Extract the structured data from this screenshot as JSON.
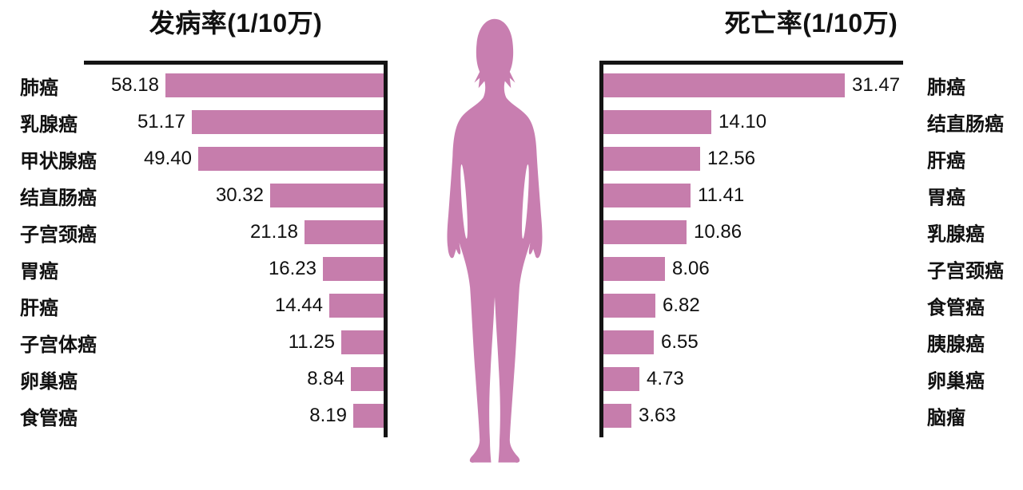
{
  "colors": {
    "bar": "#c67dac",
    "figure": "#c87eb0",
    "axis": "#141414",
    "text": "#111111",
    "background": "#ffffff"
  },
  "figure": {
    "description": "female-body-silhouette"
  },
  "chart_data": [
    {
      "type": "bar",
      "orientation": "horizontal",
      "title": "发病率(1/10万)",
      "unit": "1/10万",
      "categories": [
        "肺癌",
        "乳腺癌",
        "甲状腺癌",
        "结直肠癌",
        "子宫颈癌",
        "胃癌",
        "肝癌",
        "子宫体癌",
        "卵巢癌",
        "食管癌"
      ],
      "values": [
        58.18,
        51.17,
        49.4,
        30.32,
        21.18,
        16.23,
        14.44,
        11.25,
        8.84,
        8.19
      ],
      "xlim": [
        0,
        62
      ],
      "bars_grow": "right-to-left",
      "axis_style": "top-border-and-right-axis",
      "category_label_position": "left-of-chart",
      "value_label_position": "left-of-bar",
      "grid": false,
      "legend": false
    },
    {
      "type": "bar",
      "orientation": "horizontal",
      "title": "死亡率(1/10万)",
      "unit": "1/10万",
      "categories": [
        "肺癌",
        "结直肠癌",
        "肝癌",
        "胃癌",
        "乳腺癌",
        "子宫颈癌",
        "食管癌",
        "胰腺癌",
        "卵巢癌",
        "脑瘤"
      ],
      "values": [
        31.47,
        14.1,
        12.56,
        11.41,
        10.86,
        8.06,
        6.82,
        6.55,
        4.73,
        3.63
      ],
      "xlim": [
        0,
        34
      ],
      "bars_grow": "left-to-right",
      "axis_style": "top-border-and-left-axis",
      "category_label_position": "right-of-chart",
      "value_label_position": "right-of-bar",
      "grid": false,
      "legend": false
    }
  ]
}
